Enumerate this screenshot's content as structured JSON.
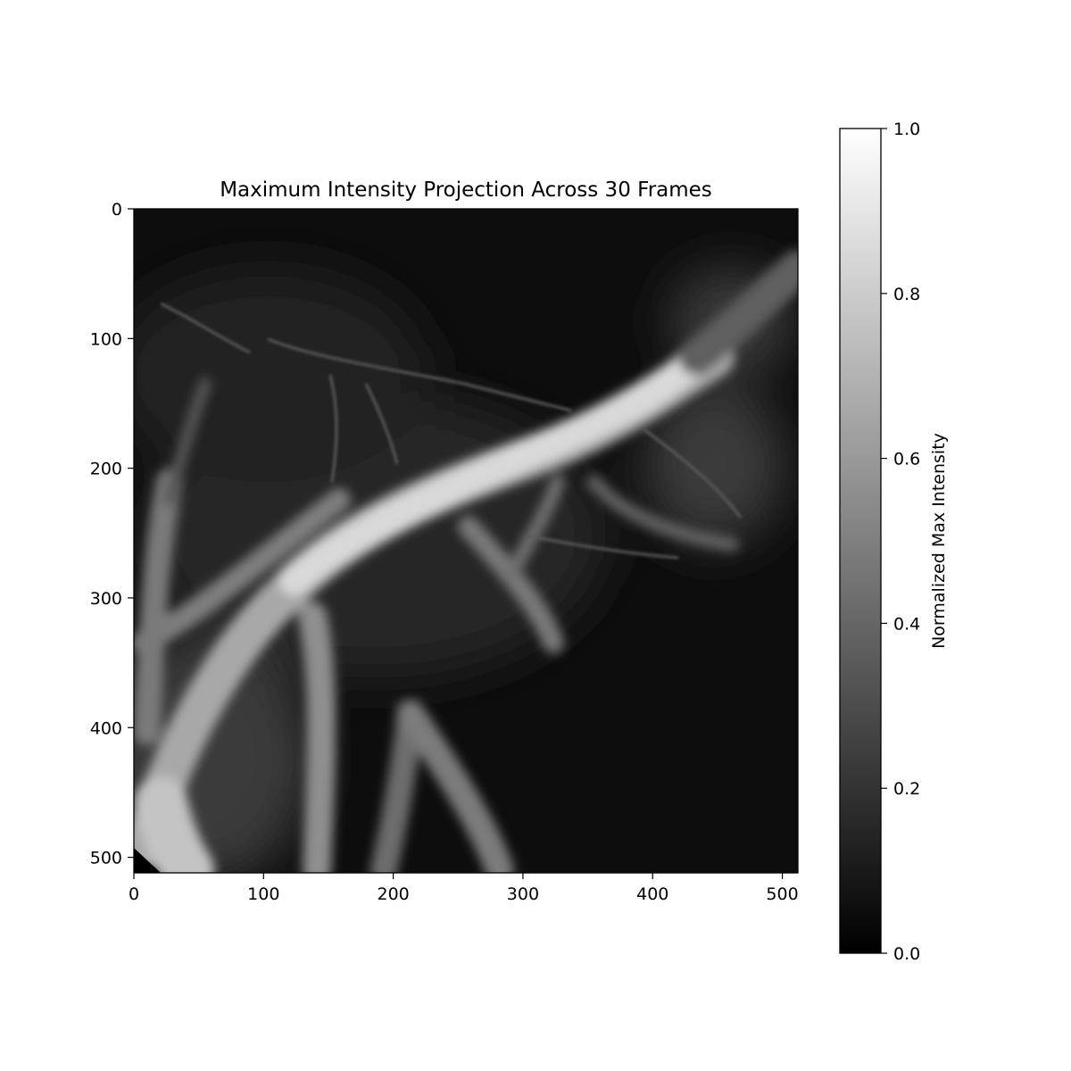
{
  "chart_data": {
    "type": "heatmap",
    "title": "Maximum Intensity Projection Across 30 Frames",
    "xlabel": "",
    "ylabel": "",
    "x_range": [
      0,
      512
    ],
    "y_range": [
      0,
      512
    ],
    "y_inverted": true,
    "x_ticks": [
      "0",
      "100",
      "200",
      "300",
      "400",
      "500"
    ],
    "y_ticks": [
      "0",
      "100",
      "200",
      "300",
      "400",
      "500"
    ],
    "colormap": "gray",
    "colorbar": {
      "label": "Normalized Max Intensity",
      "range": [
        0,
        1
      ],
      "ticks": [
        "0.0",
        "0.2",
        "0.4",
        "0.6",
        "0.8",
        "1.0"
      ],
      "color_low": "#000000",
      "color_high": "#ffffff"
    },
    "grid": false
  }
}
